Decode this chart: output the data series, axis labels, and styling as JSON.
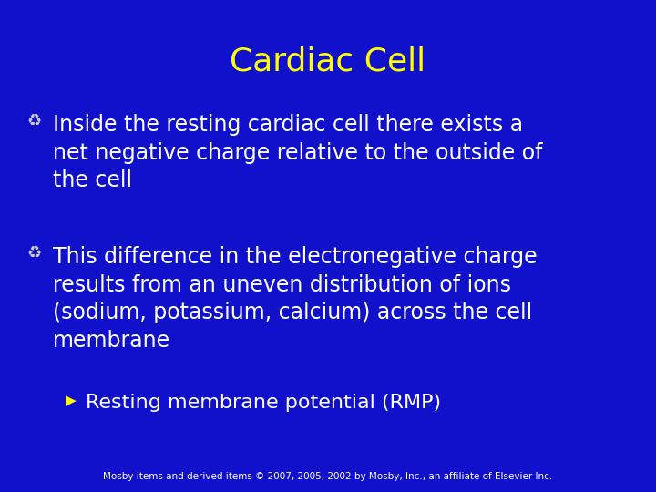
{
  "title": "Cardiac Cell",
  "title_color": "#FFFF00",
  "title_fontsize": 26,
  "background_color": "#1111CC",
  "bullet1_text": "Inside the resting cardiac cell there exists a\nnet negative charge relative to the outside of\nthe cell",
  "bullet2_text": "This difference in the electronegative charge\nresults from an uneven distribution of ions\n(sodium, potassium, calcium) across the cell\nmembrane",
  "sub_bullet_text": "Resting membrane potential (RMP)",
  "body_color": "#FFFFFF",
  "body_fontsize": 17,
  "sub_body_fontsize": 16,
  "footer_text": "Mosby items and derived items © 2007, 2005, 2002 by Mosby, Inc., an affiliate of Elsevier Inc.",
  "footer_color": "#FFFFFF",
  "footer_fontsize": 7.5,
  "bullet_symbol": "♻",
  "sub_bullet_symbol": "▶",
  "bullet_color": "#CCCCCC",
  "sub_bullet_color": "#FFFF00"
}
